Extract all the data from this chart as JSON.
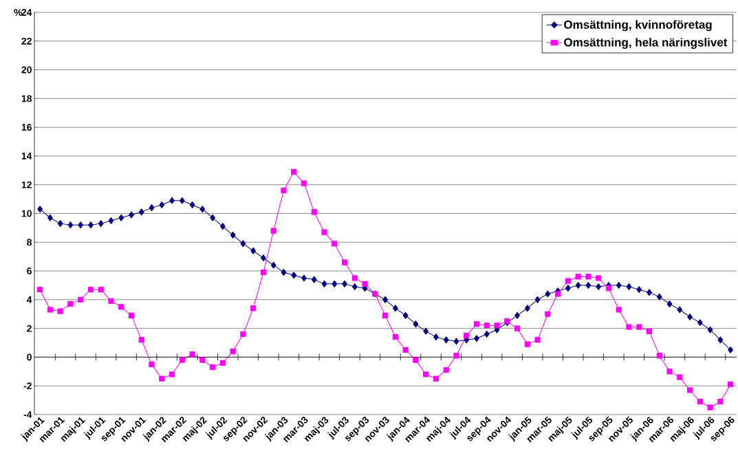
{
  "chart_data": {
    "type": "line",
    "ylabel": "%",
    "categories": [
      "jan-01",
      null,
      "mar-01",
      null,
      "maj-01",
      null,
      "jul-01",
      null,
      "sep-01",
      null,
      "nov-01",
      null,
      "jan-02",
      null,
      "mar-02",
      null,
      "maj-02",
      null,
      "jul-02",
      null,
      "sep-02",
      null,
      "nov-02",
      null,
      "jan-03",
      null,
      "mar-03",
      null,
      "maj-03",
      null,
      "jul-03",
      null,
      "sep-03",
      null,
      "nov-03",
      null,
      "jan-04",
      null,
      "mar-04",
      null,
      "maj-04",
      null,
      "jul-04",
      null,
      "sep-04",
      null,
      "nov-04",
      null,
      "jan-05",
      null,
      "mar-05",
      null,
      "maj-05",
      null,
      "jul-05",
      null,
      "sep-05",
      null,
      "nov-05",
      null,
      "jan-06",
      null,
      "mar-06",
      null,
      "maj-06",
      null,
      "jul-06",
      null,
      "sep-06"
    ],
    "series": [
      {
        "name": "Omsättning, kvinnoföretag",
        "color": "#000080",
        "marker": "diamond",
        "values": [
          10.3,
          9.7,
          9.3,
          9.2,
          9.2,
          9.2,
          9.3,
          9.5,
          9.7,
          9.9,
          10.1,
          10.4,
          10.6,
          10.9,
          10.9,
          10.6,
          10.3,
          9.7,
          9.1,
          8.5,
          7.9,
          7.4,
          6.9,
          6.4,
          5.9,
          5.7,
          5.5,
          5.4,
          5.1,
          5.1,
          5.1,
          4.9,
          4.8,
          4.4,
          4.0,
          3.4,
          2.9,
          2.3,
          1.8,
          1.4,
          1.2,
          1.1,
          1.2,
          1.3,
          1.6,
          1.9,
          2.4,
          2.9,
          3.4,
          4.0,
          4.4,
          4.6,
          4.8,
          5.0,
          5.0,
          4.9,
          5.0,
          5.0,
          4.9,
          4.7,
          4.5,
          4.2,
          3.7,
          3.3,
          2.8,
          2.4,
          1.9,
          1.2,
          0.5
        ]
      },
      {
        "name": "Omsättning, hela näringslivet",
        "color": "#ff00ff",
        "marker": "square",
        "values": [
          4.7,
          3.3,
          3.2,
          3.7,
          4.0,
          4.7,
          4.7,
          3.9,
          3.5,
          2.9,
          1.2,
          -0.5,
          -1.5,
          -1.2,
          -0.2,
          0.2,
          -0.2,
          -0.7,
          -0.4,
          0.4,
          1.6,
          3.4,
          5.9,
          8.8,
          11.6,
          12.9,
          12.1,
          10.1,
          8.7,
          7.9,
          6.6,
          5.5,
          5.1,
          4.4,
          2.9,
          1.4,
          0.5,
          -0.2,
          -1.2,
          -1.5,
          -0.9,
          0.1,
          1.5,
          2.3,
          2.2,
          2.2,
          2.5,
          2.0,
          0.9,
          1.2,
          3.0,
          4.4,
          5.3,
          5.6,
          5.6,
          5.5,
          4.8,
          3.3,
          2.1,
          2.1,
          1.8,
          0.1,
          -1.0,
          -1.4,
          -2.3,
          -3.1,
          -3.5,
          -3.1,
          -1.9
        ]
      }
    ],
    "ylim": [
      -4,
      24
    ],
    "yticks": [
      -4,
      -2,
      0,
      2,
      4,
      6,
      8,
      10,
      12,
      14,
      16,
      18,
      20,
      22,
      24
    ],
    "grid": "y",
    "legend": "top right",
    "line_style": "solid"
  }
}
